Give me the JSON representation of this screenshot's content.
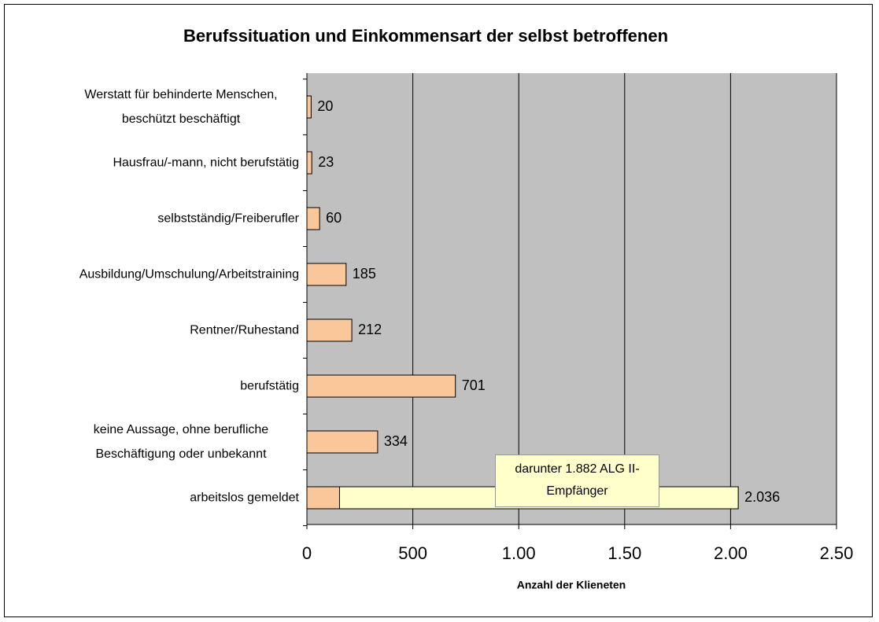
{
  "chart_data": {
    "type": "bar",
    "orientation": "horizontal",
    "title": "Berufssituation und Einkommensart der selbst betroffenen",
    "categories": [
      "Werstatt für behinderte Menschen, beschützt beschäftigt",
      "Hausfrau/-mann, nicht berufstätig",
      "selbstständig/Freiberufler",
      "Ausbildung/Umschulung/Arbeitstraining",
      "Rentner/Ruhestand",
      "berufstätig",
      "keine Aussage, ohne berufliche Beschäftigung oder unbekannt",
      "arbeitslos gemeldet"
    ],
    "values": [
      20,
      23,
      60,
      185,
      212,
      701,
      334,
      2036
    ],
    "value_labels": [
      "20",
      "23",
      "60",
      "185",
      "212",
      "701",
      "334",
      "2.036"
    ],
    "color": "#fac79b",
    "annotation": {
      "text": "darunter 1.882 ALG II-Empfänger",
      "value": 1882,
      "category": 7,
      "color": "#ffffcc"
    },
    "xlabel": "Anzahl der Klieneten",
    "xlim": [
      0,
      2500
    ],
    "xticks": [
      0,
      500,
      {
        "value": 1000,
        "label": "1.00"
      },
      {
        "value": 1500,
        "label": "1.50"
      },
      {
        "value": 2000,
        "label": "2.00"
      },
      {
        "value": 2500,
        "label": "2.50"
      }
    ],
    "grid": true,
    "plot_background": "#c0c0c0"
  }
}
